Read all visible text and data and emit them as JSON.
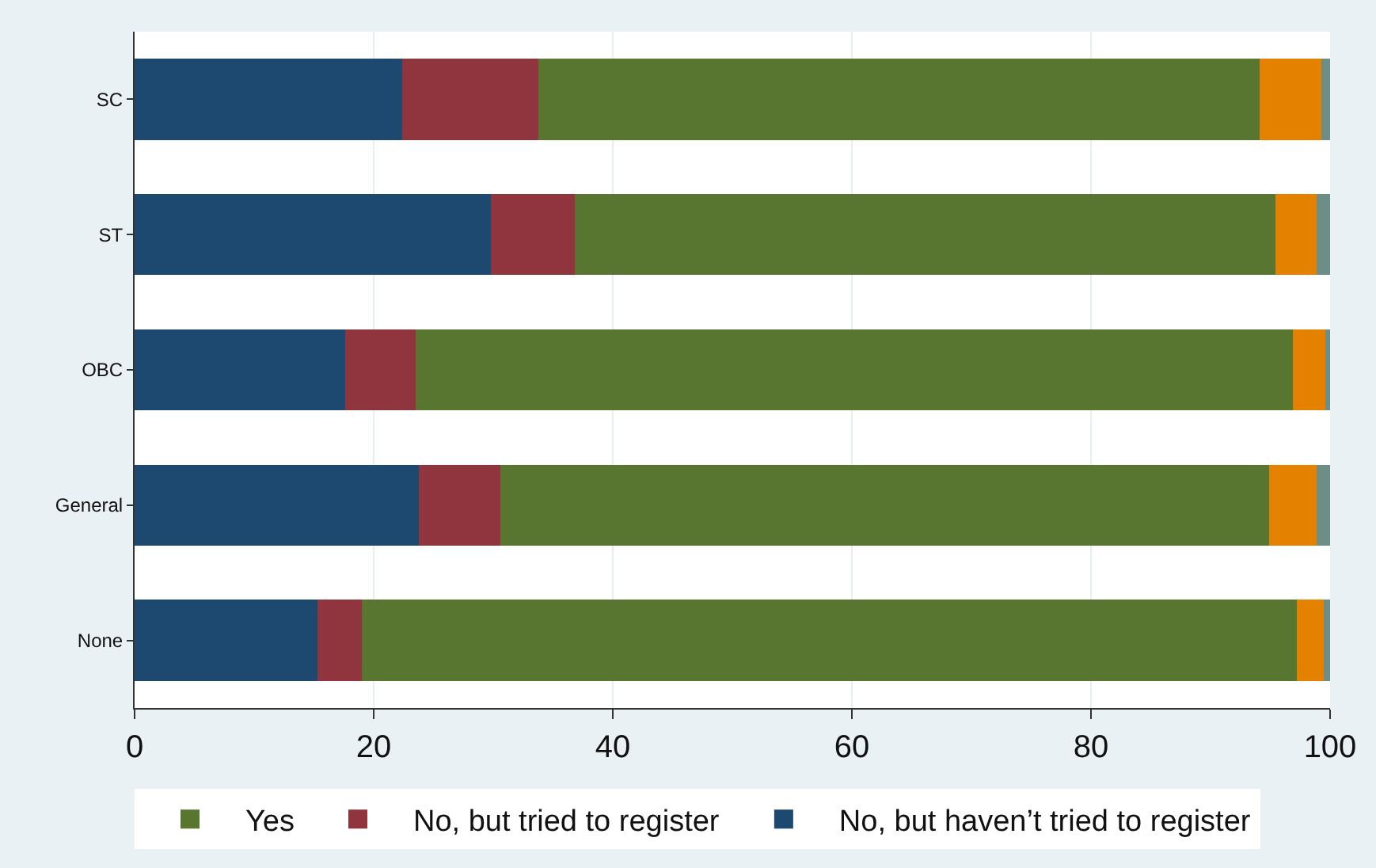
{
  "chart_data": {
    "type": "bar",
    "orientation": "horizontal",
    "stacked": true,
    "categories": [
      "SC",
      "ST",
      "OBC",
      "General",
      "None"
    ],
    "series": [
      {
        "name": "No, but haven’t tried to register",
        "color": "#1d4870",
        "values": [
          22.4,
          29.8,
          17.6,
          23.8,
          15.3
        ]
      },
      {
        "name": "No, but tried to register",
        "color": "#90353d",
        "values": [
          11.4,
          7.0,
          5.9,
          6.8,
          3.7
        ]
      },
      {
        "name": "Yes",
        "color": "#58762f",
        "values": [
          60.3,
          58.6,
          73.4,
          64.3,
          78.2
        ]
      },
      {
        "color": "#e58100",
        "values": [
          5.2,
          3.5,
          2.7,
          4.0,
          2.3
        ]
      },
      {
        "color": "#6d8e86",
        "values": [
          0.7,
          1.1,
          0.4,
          1.1,
          0.5
        ]
      }
    ],
    "xlim": [
      0,
      100
    ],
    "xticks": [
      0,
      20,
      40,
      60,
      80,
      100
    ],
    "grid": "x",
    "legend": "bottom"
  }
}
